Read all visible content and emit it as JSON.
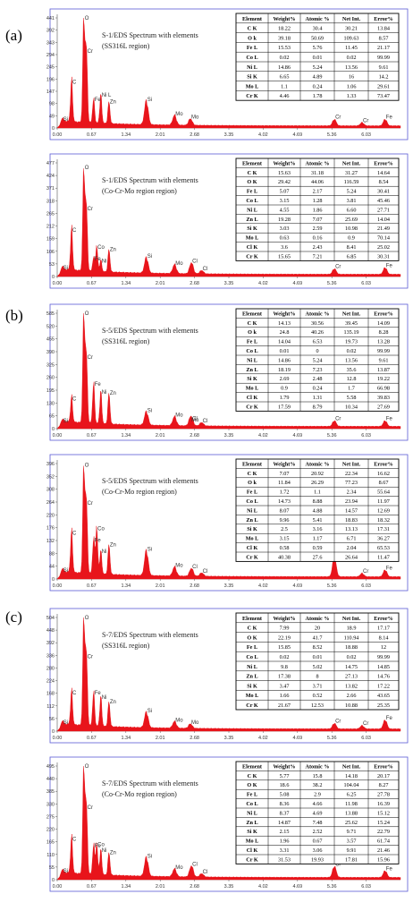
{
  "panel_labels": [
    "(a)",
    "(b)",
    "(c)"
  ],
  "table_headers": [
    "Element",
    "Weight%",
    "Atomic %",
    "Net Int.",
    "Error%"
  ],
  "x_ticks": [
    "0.00",
    "0.67",
    "1.34",
    "2.01",
    "2.68",
    "3.35",
    "4.02",
    "4.69",
    "5.36",
    "6.03"
  ],
  "colors": {
    "spectrum": "#e8141b",
    "frame": "#5b5bd6",
    "background": "#ffffff"
  },
  "chart_data": [
    {
      "type": "area",
      "title": "S-1/EDS Spectrum with elements",
      "subtitle": "(SS316L region)",
      "y_ticks": [
        "0",
        "49",
        "98",
        "147",
        "196",
        "245",
        "294",
        "343",
        "392",
        "441"
      ],
      "peaks": [
        {
          "label": "O",
          "x": 0.52,
          "h": 0.97
        },
        {
          "label": "Cr",
          "x": 0.57,
          "h": 0.66
        },
        {
          "label": "C",
          "x": 0.28,
          "h": 0.38
        },
        {
          "label": "Fe",
          "x": 0.71,
          "h": 0.22
        },
        {
          "label": "Ni L",
          "x": 0.85,
          "h": 0.26
        },
        {
          "label": "Zn",
          "x": 1.01,
          "h": 0.2
        },
        {
          "label": "Si",
          "x": 1.74,
          "h": 0.22
        },
        {
          "label": "Mo",
          "x": 2.29,
          "h": 0.09
        },
        {
          "label": "Mo",
          "x": 2.6,
          "h": 0.06
        },
        {
          "label": "Cr",
          "x": 5.41,
          "h": 0.06
        },
        {
          "label": "Cr",
          "x": 5.95,
          "h": 0.03
        },
        {
          "label": "Fe",
          "x": 6.4,
          "h": 0.06
        },
        {
          "label": "Si",
          "x": 0.1,
          "h": 0.04
        }
      ],
      "table": [
        [
          "C K",
          "18.22",
          "30.4",
          "30.21",
          "13.84"
        ],
        [
          "O k",
          "39.18",
          "50.69",
          "109.63",
          "8.57"
        ],
        [
          "Fe L",
          "15.53",
          "5.76",
          "11.45",
          "21.17"
        ],
        [
          "Co L",
          "0.02",
          "0.01",
          "0.02",
          "99.99"
        ],
        [
          "Ni L",
          "14.86",
          "5.24",
          "13.56",
          "9.61"
        ],
        [
          "Si K",
          "6.65",
          "4.89",
          "16",
          "14.2"
        ],
        [
          "Mo L",
          "1.1",
          "0.24",
          "1.06",
          "29.61"
        ],
        [
          "Cr K",
          "4.46",
          "1.78",
          "1.33",
          "73.47"
        ]
      ]
    },
    {
      "type": "area",
      "title": "S-1/EDS Spectrum with elements",
      "subtitle": "(Co-Cr-Mo region region)",
      "y_ticks": [
        "0",
        "53",
        "106",
        "159",
        "212",
        "265",
        "318",
        "371",
        "424",
        "477"
      ],
      "peaks": [
        {
          "label": "O",
          "x": 0.52,
          "h": 0.92
        },
        {
          "label": "Cr",
          "x": 0.57,
          "h": 0.56
        },
        {
          "label": "C",
          "x": 0.28,
          "h": 0.37
        },
        {
          "label": "Co",
          "x": 0.77,
          "h": 0.22
        },
        {
          "label": "Fe",
          "x": 0.71,
          "h": 0.12
        },
        {
          "label": "Ni",
          "x": 0.85,
          "h": 0.1
        },
        {
          "label": "Zn",
          "x": 1.01,
          "h": 0.2
        },
        {
          "label": "Si",
          "x": 1.74,
          "h": 0.14
        },
        {
          "label": "Mo",
          "x": 2.29,
          "h": 0.08
        },
        {
          "label": "Cl",
          "x": 2.62,
          "h": 0.1
        },
        {
          "label": "Cl",
          "x": 2.82,
          "h": 0.03
        },
        {
          "label": "Cr",
          "x": 5.41,
          "h": 0.05
        },
        {
          "label": "Fe",
          "x": 6.4,
          "h": 0.06
        },
        {
          "label": "Si",
          "x": 0.1,
          "h": 0.04
        }
      ],
      "table": [
        [
          "C K",
          "15.63",
          "31.18",
          "31.27",
          "14.64"
        ],
        [
          "O K",
          "29.42",
          "44.06",
          "116.59",
          "8.54"
        ],
        [
          "Fe L",
          "5.07",
          "2.17",
          "5.24",
          "30.41"
        ],
        [
          "Co L",
          "3.15",
          "1.28",
          "3.81",
          "45.46"
        ],
        [
          "Ni L",
          "4.55",
          "1.86",
          "6.60",
          "27.71"
        ],
        [
          "Zn L",
          "19.28",
          "7.07",
          "25.69",
          "14.04"
        ],
        [
          "Si K",
          "3.03",
          "2.59",
          "10.98",
          "21.49"
        ],
        [
          "Mo L",
          "0.63",
          "0.16",
          "0.9",
          "70.14"
        ],
        [
          "Cl K",
          "3.6",
          "2.43",
          "8.41",
          "25.02"
        ],
        [
          "Cr K",
          "15.65",
          "7.21",
          "6.85",
          "30.31"
        ]
      ]
    },
    {
      "type": "area",
      "title": "S-5/EDS Spectrum with elements",
      "subtitle": "(SS316L region)",
      "y_ticks": [
        "0",
        "65",
        "130",
        "195",
        "260",
        "325",
        "390",
        "455",
        "520",
        "585"
      ],
      "peaks": [
        {
          "label": "O",
          "x": 0.52,
          "h": 0.97
        },
        {
          "label": "Cr",
          "x": 0.57,
          "h": 0.58
        },
        {
          "label": "C",
          "x": 0.28,
          "h": 0.22
        },
        {
          "label": "Fe",
          "x": 0.71,
          "h": 0.35
        },
        {
          "label": "Ni",
          "x": 0.85,
          "h": 0.28
        },
        {
          "label": "Zn",
          "x": 1.01,
          "h": 0.27
        },
        {
          "label": "Si",
          "x": 1.74,
          "h": 0.12
        },
        {
          "label": "Mo",
          "x": 2.29,
          "h": 0.08
        },
        {
          "label": "Mo",
          "x": 2.6,
          "h": 0.04
        },
        {
          "label": "Cl",
          "x": 2.62,
          "h": 0.05
        },
        {
          "label": "Cl",
          "x": 2.82,
          "h": 0.03
        },
        {
          "label": "Cr",
          "x": 5.41,
          "h": 0.05
        },
        {
          "label": "Fe",
          "x": 6.4,
          "h": 0.05
        },
        {
          "label": "Si",
          "x": 0.1,
          "h": 0.03
        }
      ],
      "table": [
        [
          "C K",
          "14.13",
          "30.56",
          "39.45",
          "14.09"
        ],
        [
          "O k",
          "24.8",
          "40.26",
          "135.19",
          "8.28"
        ],
        [
          "Fe L",
          "14.04",
          "6.53",
          "19.73",
          "13.28"
        ],
        [
          "Co L",
          "0.01",
          "0",
          "0.02",
          "99.99"
        ],
        [
          "Ni L",
          "14.86",
          "5.24",
          "13.56",
          "9.61"
        ],
        [
          "Zn L",
          "18.19",
          "7.23",
          "35.6",
          "13.87"
        ],
        [
          "Si K",
          "2.69",
          "2.48",
          "12.8",
          "19.22"
        ],
        [
          "Mo L",
          "0.9",
          "0.24",
          "1.7",
          "66.98"
        ],
        [
          "Cl K",
          "1.79",
          "1.31",
          "5.58",
          "39.83"
        ],
        [
          "Cr K",
          "17.59",
          "8.79",
          "10.34",
          "27.69"
        ]
      ]
    },
    {
      "type": "area",
      "title": "S-5/EDS Spectrum with elements",
      "subtitle": "(Co-Cr-Mo region region)",
      "y_ticks": [
        "0",
        "44",
        "88",
        "132",
        "176",
        "220",
        "264",
        "308",
        "352",
        "396"
      ],
      "peaks": [
        {
          "label": "O",
          "x": 0.52,
          "h": 0.95
        },
        {
          "label": "Cr",
          "x": 0.57,
          "h": 0.62
        },
        {
          "label": "C",
          "x": 0.28,
          "h": 0.36
        },
        {
          "label": "Co",
          "x": 0.77,
          "h": 0.4
        },
        {
          "label": "Fe",
          "x": 0.71,
          "h": 0.3
        },
        {
          "label": "Ni",
          "x": 0.85,
          "h": 0.2
        },
        {
          "label": "Zn",
          "x": 1.01,
          "h": 0.26
        },
        {
          "label": "Si",
          "x": 1.74,
          "h": 0.22
        },
        {
          "label": "Mo",
          "x": 2.29,
          "h": 0.08
        },
        {
          "label": "Cl",
          "x": 2.62,
          "h": 0.07
        },
        {
          "label": "Cl",
          "x": 2.82,
          "h": 0.03
        },
        {
          "label": "Cr",
          "x": 5.41,
          "h": 0.17
        },
        {
          "label": "Cr",
          "x": 5.95,
          "h": 0.03
        },
        {
          "label": "Fe",
          "x": 6.4,
          "h": 0.06
        },
        {
          "label": "Si",
          "x": 0.1,
          "h": 0.04
        }
      ],
      "table": [
        [
          "C K",
          "7.07",
          "20.92",
          "22.34",
          "16.62"
        ],
        [
          "O k",
          "11.84",
          "26.29",
          "77.23",
          "8.67"
        ],
        [
          "Fe L",
          "1.72",
          "1.1",
          "2.34",
          "55.64"
        ],
        [
          "Co L",
          "14.73",
          "8.88",
          "23.94",
          "11.97"
        ],
        [
          "Ni L",
          "8.07",
          "4.88",
          "14.57",
          "12.69"
        ],
        [
          "Zn L",
          "9.96",
          "5.41",
          "18.83",
          "18.32"
        ],
        [
          "Si K",
          "2.5",
          "3.16",
          "13.13",
          "17.31"
        ],
        [
          "Mo L",
          "3.15",
          "1.17",
          "6.71",
          "36.27"
        ],
        [
          "Cl K",
          "0.58",
          "0.59",
          "2.04",
          "65.53"
        ],
        [
          "Cr K",
          "40.38",
          "27.6",
          "26.64",
          "11.47"
        ]
      ]
    },
    {
      "type": "area",
      "title": "S-7/EDS Spectrum with elements",
      "subtitle": "(SS316L region)",
      "y_ticks": [
        "0",
        "56",
        "112",
        "168",
        "224",
        "280",
        "336",
        "392",
        "448",
        "504"
      ],
      "peaks": [
        {
          "label": "O",
          "x": 0.52,
          "h": 0.97
        },
        {
          "label": "Cr",
          "x": 0.57,
          "h": 0.62
        },
        {
          "label": "C",
          "x": 0.28,
          "h": 0.3
        },
        {
          "label": "Fe",
          "x": 0.71,
          "h": 0.3
        },
        {
          "label": "Ni",
          "x": 0.85,
          "h": 0.26
        },
        {
          "label": "Zn",
          "x": 1.01,
          "h": 0.22
        },
        {
          "label": "Si",
          "x": 1.74,
          "h": 0.14
        },
        {
          "label": "Mo",
          "x": 2.29,
          "h": 0.06
        },
        {
          "label": "Mo",
          "x": 2.6,
          "h": 0.04
        },
        {
          "label": "Cr",
          "x": 5.41,
          "h": 0.05
        },
        {
          "label": "Cr",
          "x": 5.95,
          "h": 0.03
        },
        {
          "label": "Fe",
          "x": 6.4,
          "h": 0.08
        },
        {
          "label": "Si",
          "x": 0.1,
          "h": 0.04
        }
      ],
      "table": [
        [
          "C K",
          "7.99",
          "20",
          "18.9",
          "17.17"
        ],
        [
          "O K",
          "22.19",
          "41.7",
          "110.94",
          "8.14"
        ],
        [
          "Fe L",
          "15.85",
          "8.52",
          "18.88",
          "12"
        ],
        [
          "Co L",
          "0.02",
          "0.01",
          "0.02",
          "99.99"
        ],
        [
          "Ni L",
          "9.8",
          "5.02",
          "14.75",
          "14.85"
        ],
        [
          "Zn L",
          "17.38",
          "8",
          "27.13",
          "14.76"
        ],
        [
          "Si K",
          "3.47",
          "3.71",
          "13.82",
          "17.22"
        ],
        [
          "Mo L",
          "1.66",
          "0.52",
          "2.66",
          "43.65"
        ],
        [
          "Cr K",
          "21.67",
          "12.53",
          "10.88",
          "25.35"
        ]
      ]
    },
    {
      "type": "area",
      "title": "S-7/EDS Spectrum with elements",
      "subtitle": "(Co-Cr-Mo region region)",
      "y_ticks": [
        "0",
        "55",
        "110",
        "165",
        "220",
        "275",
        "330",
        "385",
        "440",
        "495"
      ],
      "peaks": [
        {
          "label": "O",
          "x": 0.52,
          "h": 0.97
        },
        {
          "label": "Cr",
          "x": 0.57,
          "h": 0.6
        },
        {
          "label": "C",
          "x": 0.28,
          "h": 0.32
        },
        {
          "label": "Co",
          "x": 0.77,
          "h": 0.27
        },
        {
          "label": "Fe",
          "x": 0.71,
          "h": 0.26
        },
        {
          "label": "Ni",
          "x": 0.85,
          "h": 0.22
        },
        {
          "label": "Zn",
          "x": 1.01,
          "h": 0.2
        },
        {
          "label": "Si",
          "x": 1.74,
          "h": 0.17
        },
        {
          "label": "Mo",
          "x": 2.29,
          "h": 0.07
        },
        {
          "label": "Cl",
          "x": 2.62,
          "h": 0.1
        },
        {
          "label": "Cl",
          "x": 2.82,
          "h": 0.03
        },
        {
          "label": "Cr",
          "x": 5.41,
          "h": 0.1
        },
        {
          "label": "Fe",
          "x": 6.4,
          "h": 0.06
        },
        {
          "label": "Si",
          "x": 0.1,
          "h": 0.04
        }
      ],
      "table": [
        [
          "C K",
          "5.77",
          "15.8",
          "14.18",
          "20.17"
        ],
        [
          "O K",
          "18.6",
          "38.2",
          "104.04",
          "8.27"
        ],
        [
          "Fe L",
          "5.08",
          "2.9",
          "6.25",
          "27.78"
        ],
        [
          "Co L",
          "8.36",
          "4.66",
          "11.98",
          "16.39"
        ],
        [
          "Ni L",
          "8.37",
          "4.69",
          "13.88",
          "15.12"
        ],
        [
          "Zn L",
          "14.87",
          "7.48",
          "25.62",
          "15.24"
        ],
        [
          "Si K",
          "2.15",
          "2.52",
          "9.71",
          "22.79"
        ],
        [
          "Mo L",
          "1.96",
          "0.67",
          "3.57",
          "61.74"
        ],
        [
          "Cl K",
          "3.31",
          "3.06",
          "9.91",
          "21.46"
        ],
        [
          "Cr K",
          "31.53",
          "19.93",
          "17.81",
          "15.96"
        ]
      ]
    }
  ]
}
